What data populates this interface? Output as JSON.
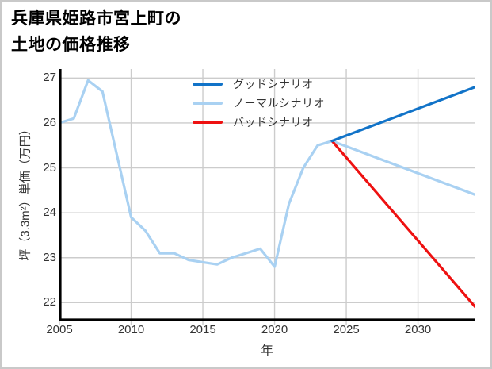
{
  "chart_data": {
    "type": "line",
    "title": "兵庫県姫路市宮上町の\n土地の価格推移",
    "xlabel": "年",
    "ylabel": "坪（3.3m²）単価（万円）",
    "xlim": [
      2005,
      2034
    ],
    "ylim": [
      21.6,
      27.2
    ],
    "xticks": [
      2005,
      2010,
      2015,
      2020,
      2025,
      2030
    ],
    "yticks": [
      22,
      23,
      24,
      25,
      26,
      27
    ],
    "grid": true,
    "grid_color": "#cccccc",
    "axis_color": "#000000",
    "legend_position": "upper center",
    "series": [
      {
        "key": "good-scenario",
        "name": "グッドシナリオ",
        "color": "#1173c8",
        "zorder": 3,
        "x": [
          2024,
          2034
        ],
        "y": [
          25.6,
          26.8
        ]
      },
      {
        "key": "normal-scenario",
        "name": "ノーマルシナリオ",
        "color": "#a9d1f2",
        "zorder": 1,
        "x": [
          2005,
          2006,
          2007,
          2008,
          2009,
          2010,
          2011,
          2012,
          2013,
          2014,
          2015,
          2016,
          2017,
          2018,
          2019,
          2020,
          2021,
          2022,
          2023,
          2024,
          2034
        ],
        "y": [
          26.0,
          26.1,
          26.95,
          26.7,
          25.3,
          23.9,
          23.6,
          23.1,
          23.1,
          22.95,
          22.9,
          22.85,
          23.0,
          23.1,
          23.2,
          22.8,
          24.2,
          25.0,
          25.5,
          25.6,
          24.4
        ]
      },
      {
        "key": "bad-scenario",
        "name": "バッドシナリオ",
        "color": "#ee1111",
        "zorder": 2,
        "x": [
          2024,
          2034
        ],
        "y": [
          25.6,
          21.9
        ]
      }
    ]
  }
}
